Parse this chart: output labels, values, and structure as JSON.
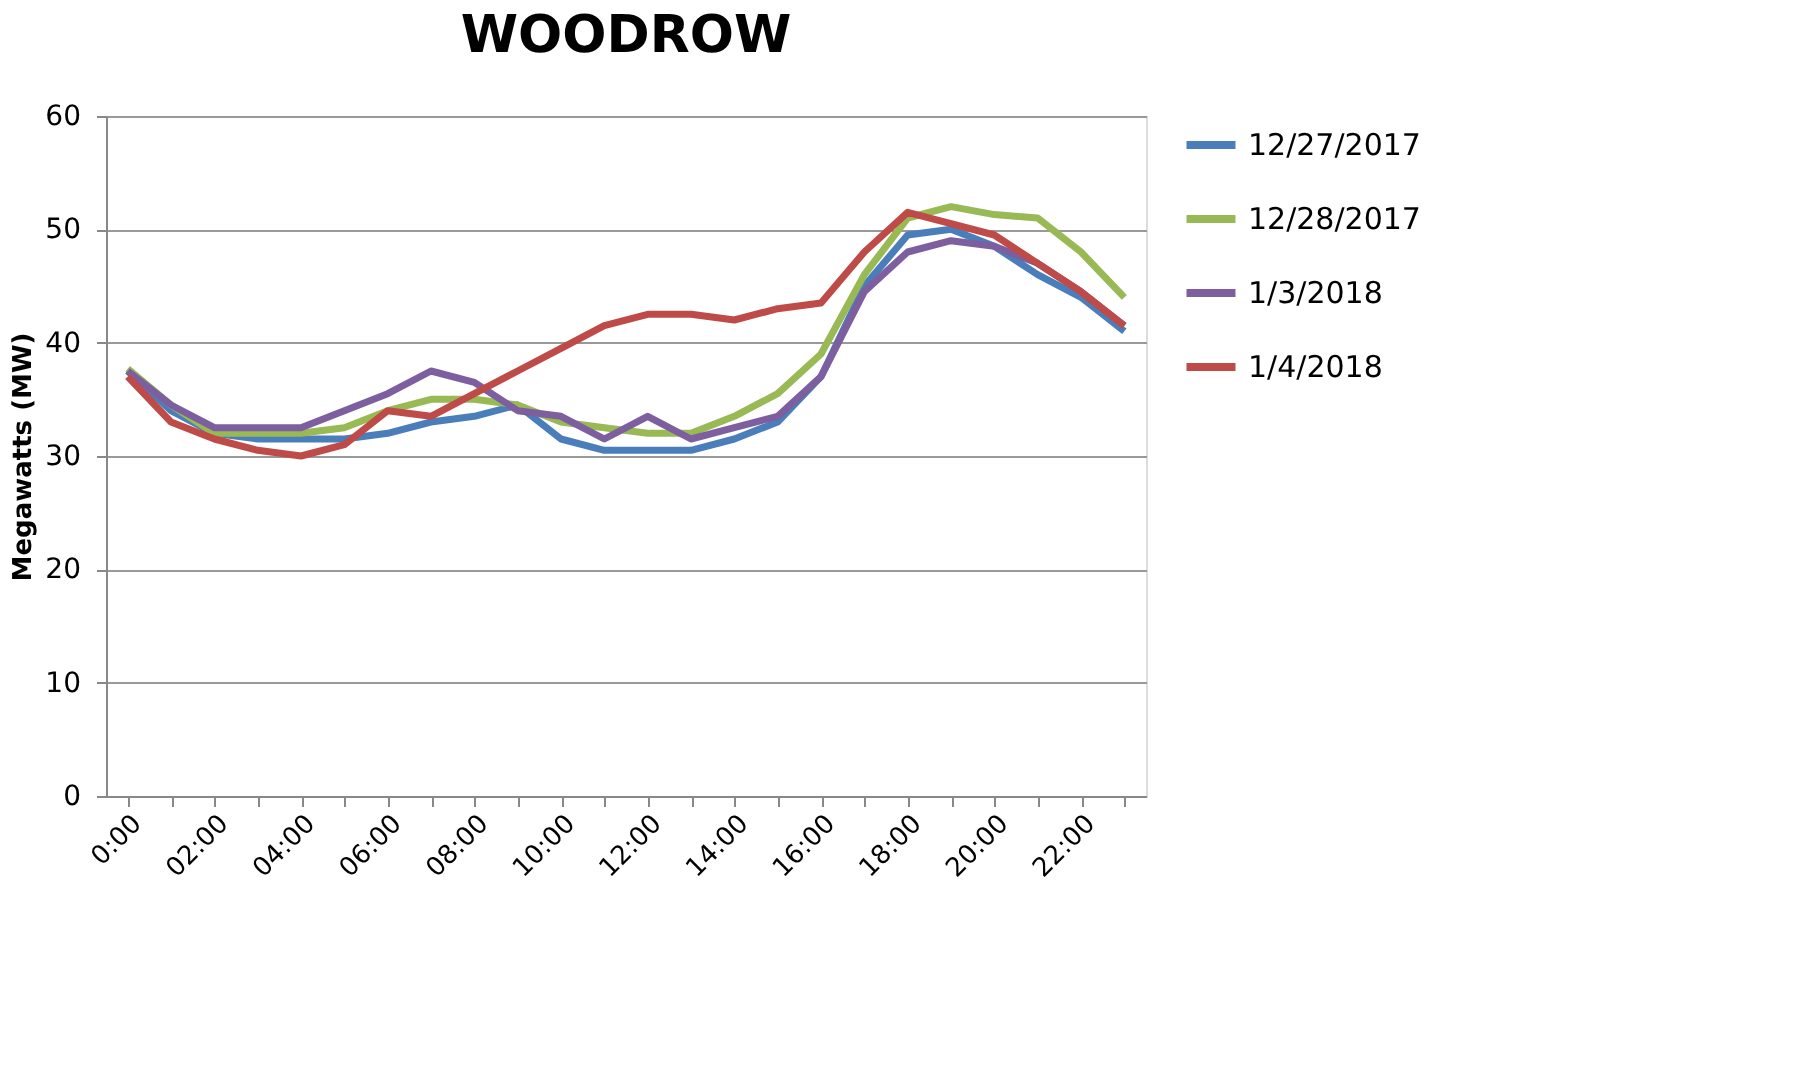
{
  "chart_data": {
    "type": "line",
    "title": "WOODROW",
    "ylabel": "Megawatts (MW)",
    "categories": [
      "0:00",
      null,
      "02:00",
      null,
      "04:00",
      null,
      "06:00",
      null,
      "08:00",
      null,
      "10:00",
      null,
      "12:00",
      null,
      "14:00",
      null,
      "16:00",
      null,
      "18:00",
      null,
      "20:00",
      null,
      "22:00",
      null
    ],
    "series": [
      {
        "name": "12/27/2017",
        "color": "#4a7ebb",
        "values": [
          37.5,
          34,
          32,
          31.5,
          31.5,
          31.5,
          32,
          33,
          33.5,
          34.5,
          31.5,
          30.5,
          30.5,
          30.5,
          31.5,
          33,
          37,
          45,
          49.5,
          50,
          48.5,
          46,
          44,
          41
        ]
      },
      {
        "name": "12/28/2017",
        "color": "#98b954",
        "values": [
          37.7,
          34.5,
          32,
          32,
          32,
          32.5,
          34,
          35,
          35,
          34.5,
          33,
          32.5,
          32,
          32,
          33.5,
          35.5,
          39,
          46,
          51,
          52,
          51.3,
          51,
          48,
          44
        ]
      },
      {
        "name": "1/3/2018",
        "color": "#7d5fa0",
        "values": [
          37.5,
          34.5,
          32.5,
          32.5,
          32.5,
          34,
          35.5,
          37.5,
          36.5,
          34,
          33.5,
          31.5,
          33.5,
          31.5,
          32.5,
          33.5,
          37,
          44.5,
          48,
          49,
          48.5,
          47,
          44.5,
          41.5
        ]
      },
      {
        "name": "1/4/2018",
        "color": "#be4b48",
        "values": [
          37,
          33,
          31.5,
          30.5,
          30,
          31,
          34,
          33.5,
          35.5,
          37.5,
          39.5,
          41.5,
          42.5,
          42.5,
          42,
          43,
          43.5,
          48,
          51.5,
          50.5,
          49.5,
          47,
          44.5,
          41.5
        ]
      }
    ],
    "ylim": [
      0,
      60
    ],
    "yticks": [
      0,
      10,
      20,
      30,
      40,
      50,
      60
    ],
    "grid": "y",
    "legend": "right",
    "marker": "none",
    "line_style": "solid"
  }
}
